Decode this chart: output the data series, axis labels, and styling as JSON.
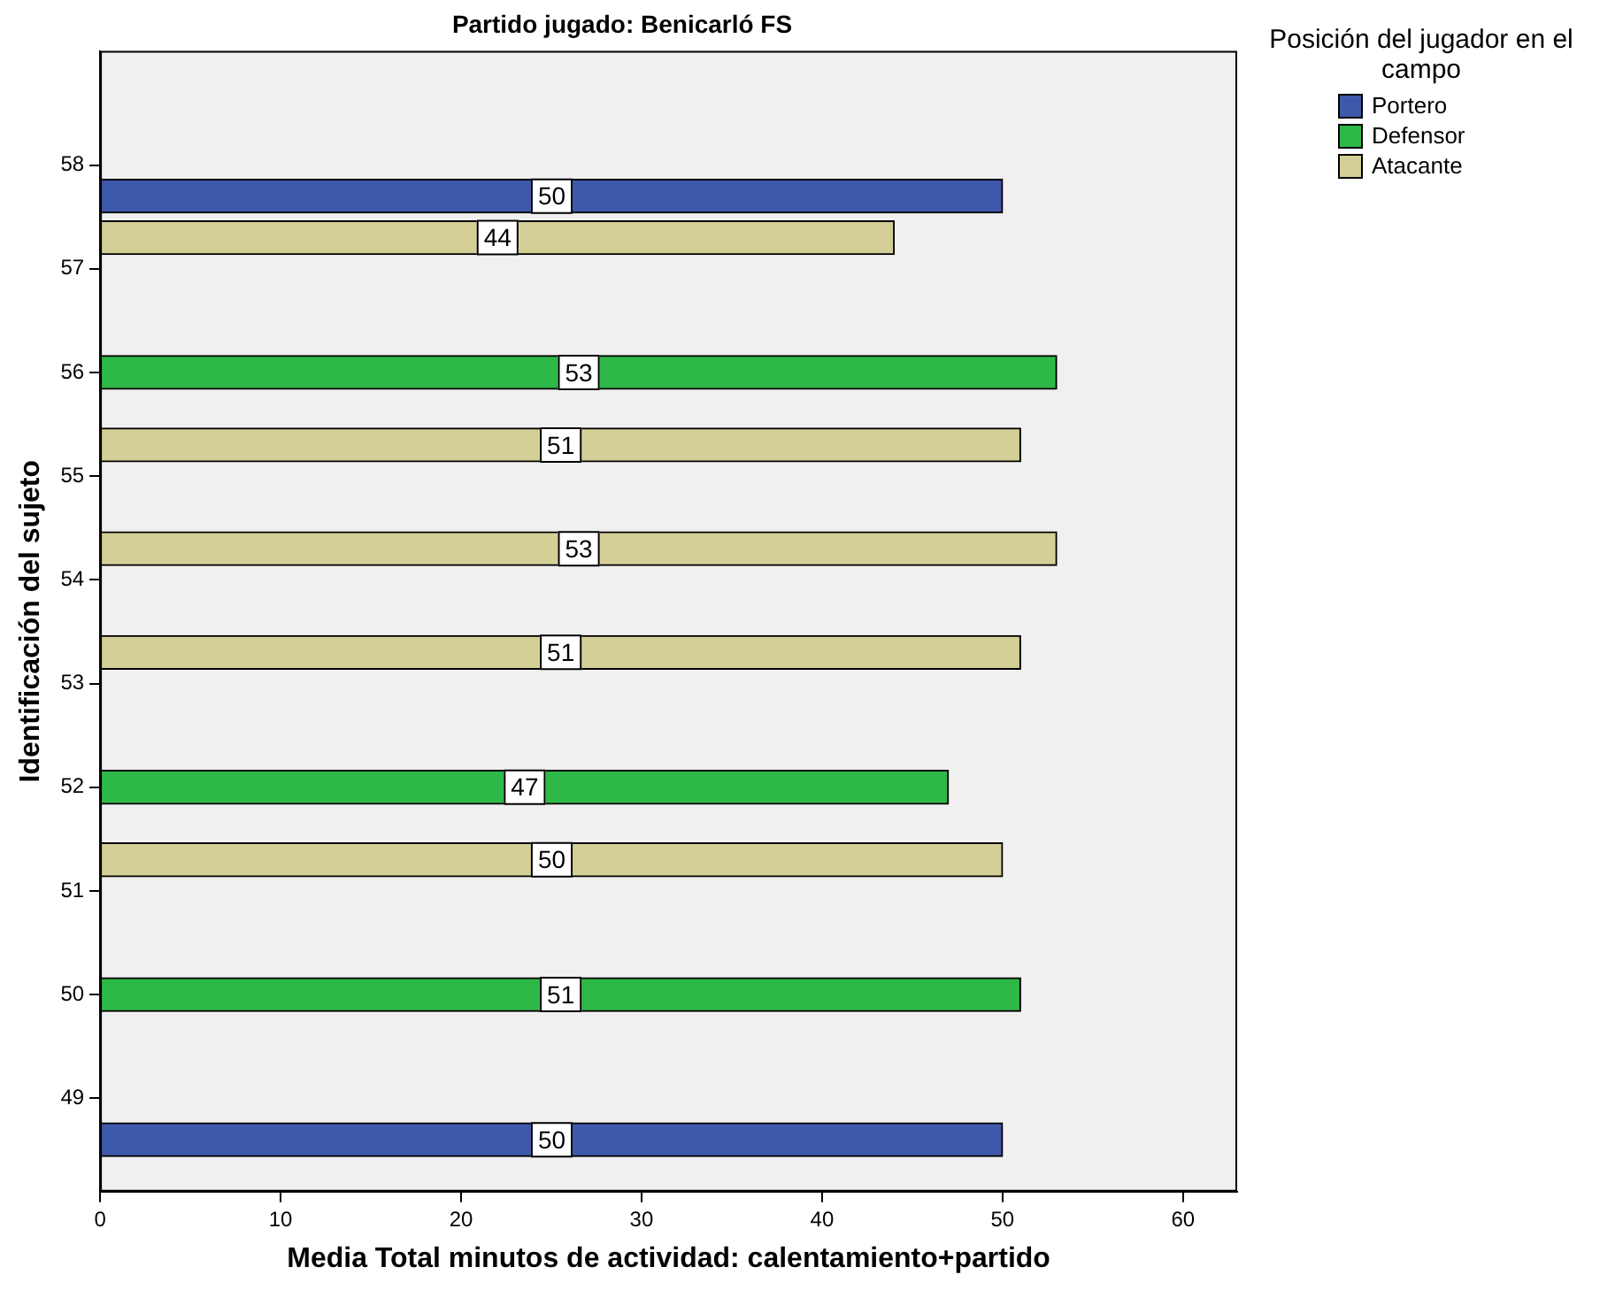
{
  "chart_data": {
    "type": "bar",
    "orientation": "horizontal",
    "title": "Partido jugado: Benicarló FS",
    "xlabel": "Media Total minutos de actividad: calentamiento+partido",
    "ylabel": "Identificación del sujeto",
    "legend_title": "Posición del jugador en el campo",
    "legend": "top right",
    "grid": false,
    "data_labels": true,
    "xlim": [
      0,
      63
    ],
    "xticks": [
      0,
      10,
      20,
      30,
      40,
      50,
      60
    ],
    "ylim": [
      48.1,
      59.1
    ],
    "yticks": [
      49,
      50,
      51,
      52,
      53,
      54,
      55,
      56,
      57,
      58
    ],
    "series": [
      {
        "name": "Portero",
        "color": "#3e58ac",
        "x": [
          57.7,
          48.6
        ],
        "values": [
          50,
          50
        ]
      },
      {
        "name": "Defensor",
        "color": "#2eb848",
        "x": [
          56.0,
          52.0,
          50.0
        ],
        "values": [
          53,
          47,
          51
        ]
      },
      {
        "name": "Atacante",
        "color": "#d4cf96",
        "x": [
          57.3,
          55.3,
          54.3,
          53.3,
          51.3
        ],
        "values": [
          44,
          51,
          53,
          51,
          50
        ]
      }
    ]
  }
}
